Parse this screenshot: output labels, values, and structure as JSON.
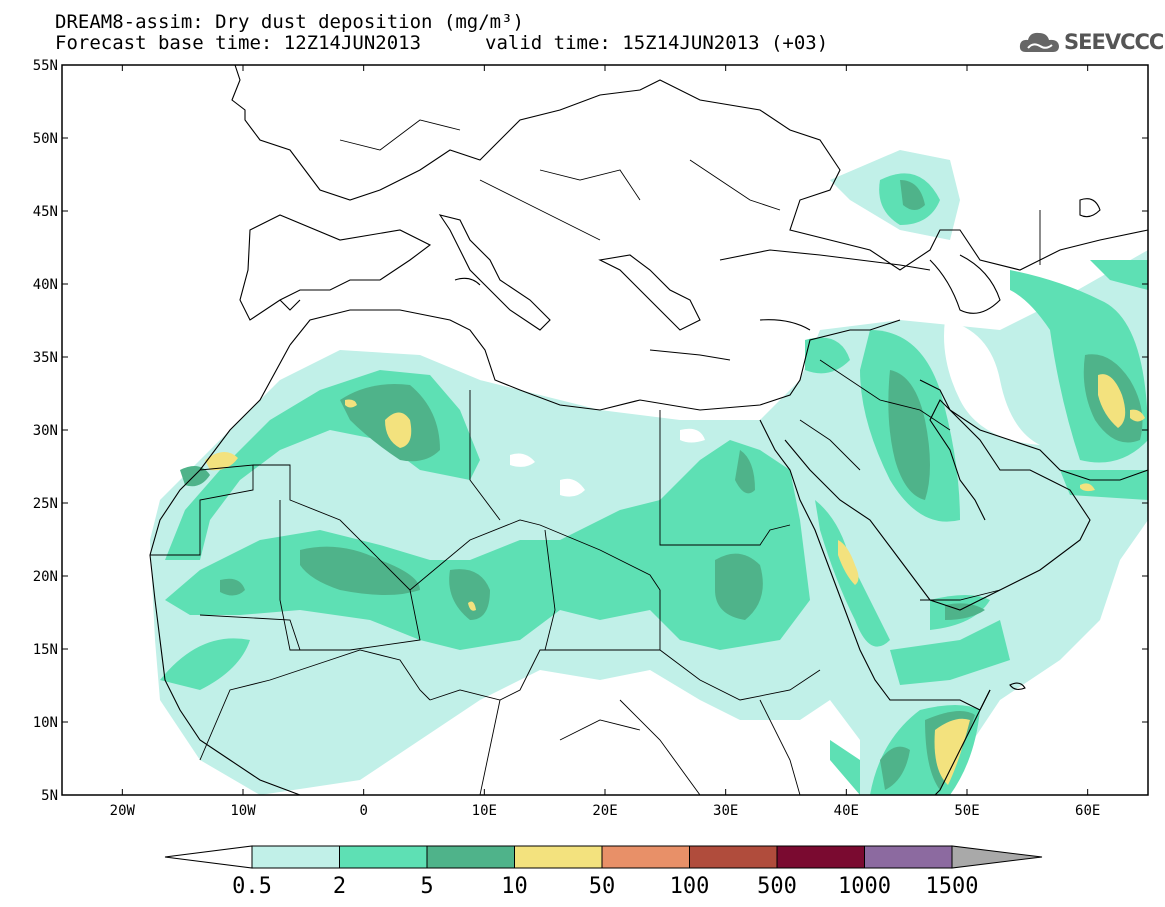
{
  "header": {
    "title": "DREAM8-assim: Dry dust deposition (mg/m³)",
    "forecast_base": "Forecast base time: 12Z14JUN2013",
    "valid_time": "valid time: 15Z14JUN2013 (+03)"
  },
  "logo": {
    "text": "SEEVCCC",
    "icon": "cloud-icon"
  },
  "map": {
    "lat_ticks": [
      "55N",
      "50N",
      "45N",
      "40N",
      "35N",
      "30N",
      "25N",
      "20N",
      "15N",
      "10N",
      "5N"
    ],
    "lon_ticks": [
      "20W",
      "10W",
      "0",
      "10E",
      "20E",
      "30E",
      "40E",
      "50E",
      "60E"
    ],
    "lat_range": [
      5,
      55
    ],
    "lon_range": [
      -25,
      65
    ]
  },
  "legend": {
    "labels": [
      "0.5",
      "2",
      "5",
      "10",
      "50",
      "100",
      "500",
      "1000",
      "1500"
    ],
    "colors": [
      "#c1f0e8",
      "#5ee0b4",
      "#4fb38a",
      "#f3e27e",
      "#e89068",
      "#b04c3c",
      "#7a0a30",
      "#8c6aa0"
    ],
    "under_color": "#ffffff",
    "over_color": "#a9a9a9"
  },
  "colors": {
    "land_line": "#000000",
    "sea": "#ffffff"
  }
}
